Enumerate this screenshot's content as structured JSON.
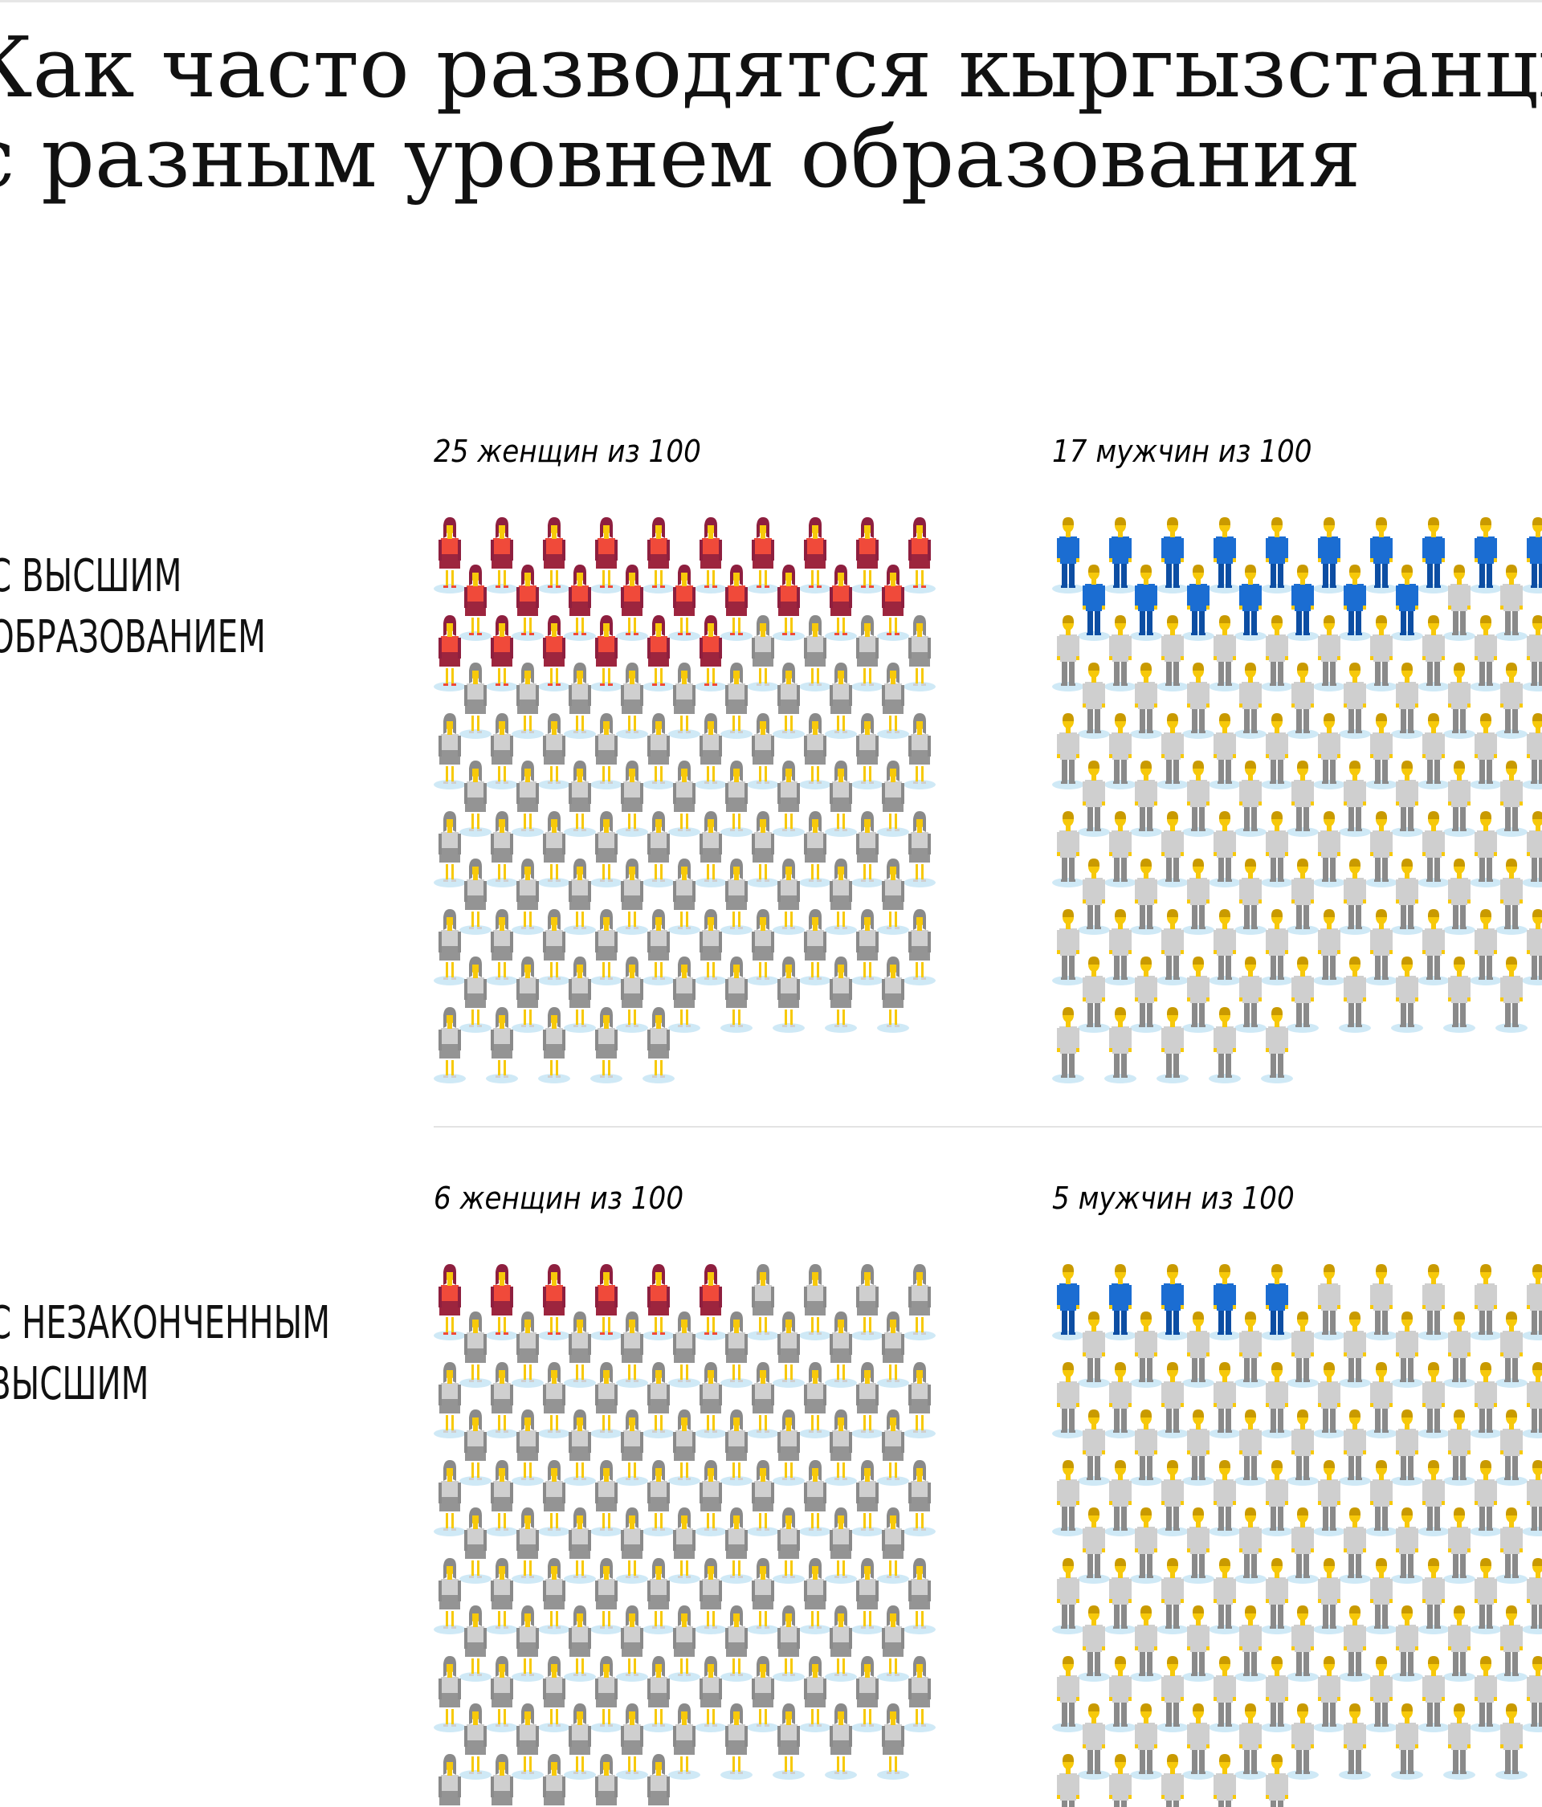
{
  "title_lines": [
    "Как часто разводятся кыргызстанцы",
    "с разным уровнем образования"
  ],
  "colors": {
    "women": "#f04a3a",
    "women_dark": "#8e1f3f",
    "men": "#1b6dd2",
    "men_dark": "#0d4ea3",
    "inactive_light": "#cfcfcf",
    "inactive_dark": "#8a8a8a",
    "skin": "#f7c90a",
    "shadow": "#cfe9f6"
  },
  "chart_data": {
    "type": "pictogram",
    "icons_per_group": 100,
    "rows": [
      {
        "label_lines": [
          "с высшим",
          "образованием"
        ],
        "groups": [
          {
            "name": "женщины",
            "label": "25 женщин из 100",
            "value": 25,
            "total": 100
          },
          {
            "name": "мужчины",
            "label": "17 мужчин из 100",
            "value": 17,
            "total": 100
          }
        ]
      },
      {
        "label_lines": [
          "с незаконченным",
          "высшим"
        ],
        "groups": [
          {
            "name": "женщины",
            "label": "6 женщин из 100",
            "value": 6,
            "total": 100
          },
          {
            "name": "мужчины",
            "label": "5 мужчин из 100",
            "value": 5,
            "total": 100
          }
        ]
      }
    ]
  }
}
